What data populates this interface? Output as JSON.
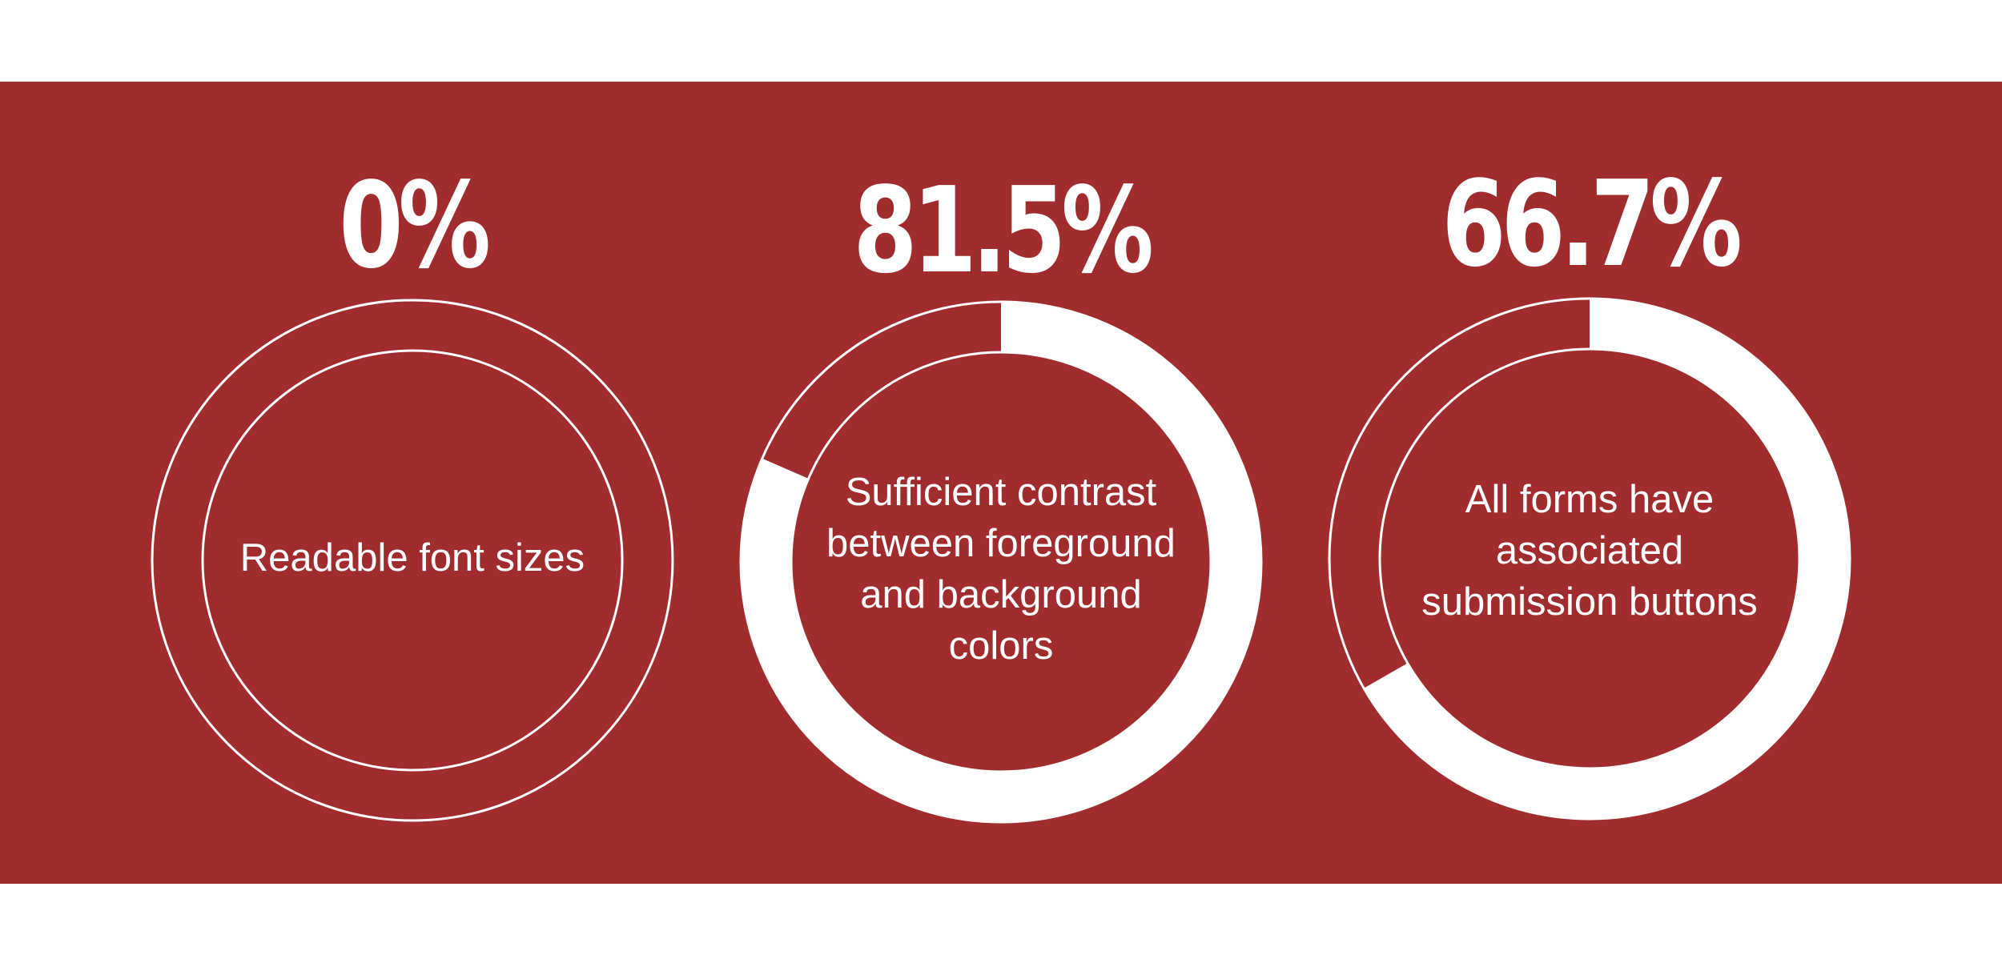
{
  "chart_data": [
    {
      "type": "pie",
      "value": 0,
      "value_label": "0%",
      "label": "Readable font sizes"
    },
    {
      "type": "pie",
      "value": 81.5,
      "value_label": "81.5%",
      "label": "Sufficient contrast\nbetween foreground\nand background\ncolors"
    },
    {
      "type": "pie",
      "value": 66.7,
      "value_label": "66.7%",
      "label": "All forms have\nassociated\nsubmission buttons"
    }
  ],
  "colors": {
    "background": "#a12c2e",
    "foreground": "#ffffff"
  }
}
